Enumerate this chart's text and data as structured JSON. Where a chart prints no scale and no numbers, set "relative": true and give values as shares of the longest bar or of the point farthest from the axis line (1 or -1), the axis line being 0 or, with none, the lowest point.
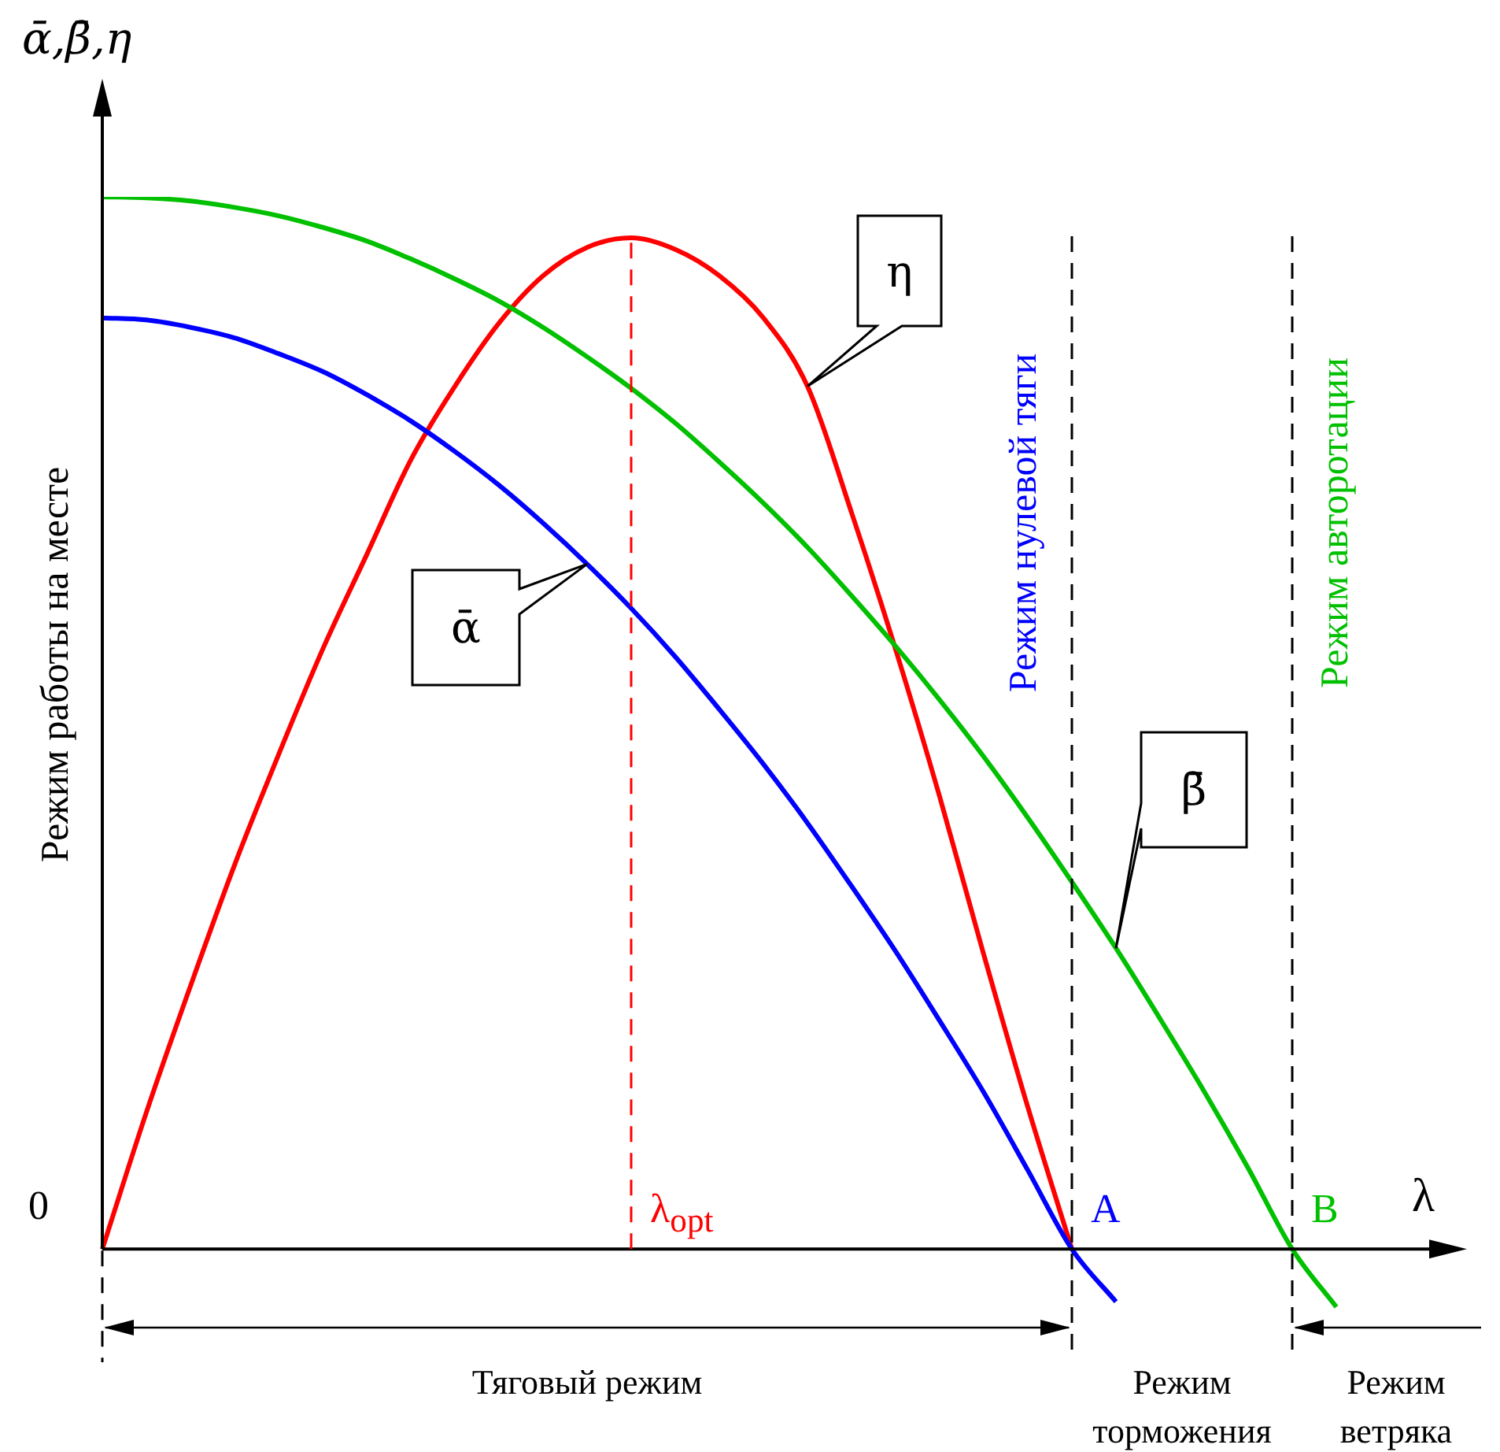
{
  "chart_data": {
    "type": "line",
    "relative": true,
    "ylabel": "ᾱ,β̄,η",
    "xlabel": "λ",
    "categories": [
      null,
      null,
      null,
      null,
      null,
      null,
      null,
      null,
      null,
      null,
      null,
      null,
      null,
      null,
      null,
      null,
      null,
      null,
      null,
      null,
      null,
      null,
      null,
      null,
      null,
      null,
      null,
      null,
      null
    ],
    "series": [
      {
        "name": "ᾱ",
        "color": "#0000ff",
        "values": [
          0.885,
          0.883,
          0.876,
          0.866,
          0.851,
          0.834,
          0.812,
          0.787,
          0.758,
          0.726,
          0.69,
          0.651,
          0.609,
          0.563,
          0.513,
          0.461,
          0.405,
          0.345,
          0.283,
          0.217,
          0.149,
          0.075,
          0,
          -0.05,
          null,
          null,
          null,
          null,
          null
        ]
      },
      {
        "name": "β̄",
        "color": "#00c000",
        "values": [
          1,
          0.999,
          0.996,
          0.99,
          0.982,
          0.971,
          0.958,
          0.941,
          0.922,
          0.901,
          0.876,
          0.848,
          0.818,
          0.785,
          0.748,
          0.709,
          0.667,
          0.621,
          0.573,
          0.522,
          0.468,
          0.41,
          0.349,
          0.286,
          0.219,
          0.15,
          0.077,
          0,
          -0.055
        ]
      },
      {
        "name": "η",
        "color": "#ff0000",
        "values": [
          0,
          0.13,
          0.25,
          0.365,
          0.47,
          0.57,
          0.66,
          0.75,
          0.82,
          0.88,
          0.925,
          0.952,
          0.961,
          0.95,
          0.925,
          0.885,
          0.82,
          0.7,
          0.57,
          0.43,
          0.28,
          0.135,
          0,
          null,
          null,
          null,
          null,
          null,
          null
        ]
      }
    ],
    "annotations": [
      "Режим работы на месте",
      "Режим нулевой тяги",
      "Режим авторотации",
      "Тяговый режим",
      "Режим торможения",
      "Режим ветряка",
      "0",
      "λ$_{opt}$",
      "A",
      "B"
    ],
    "legend": false,
    "tick_labels": false,
    "marker": "none",
    "line_style": "solid"
  }
}
